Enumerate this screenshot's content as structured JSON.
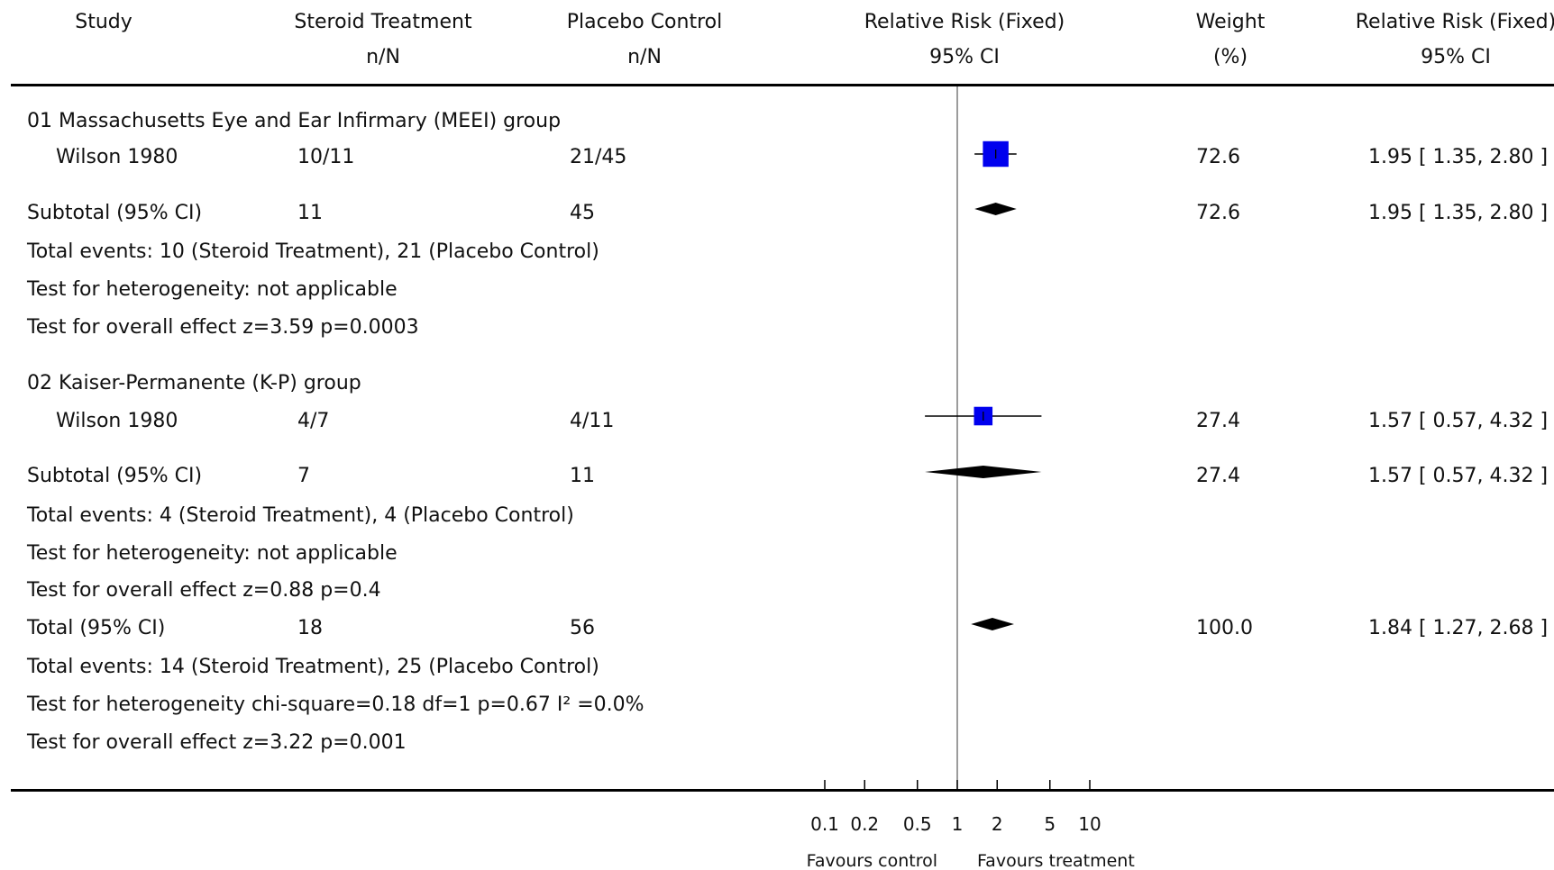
{
  "header": {
    "study": "Study",
    "treatment": "Steroid Treatment",
    "treatment_sub": "n/N",
    "control": "Placebo Control",
    "control_sub": "n/N",
    "rr": "Relative Risk (Fixed)",
    "rr_sub": "95% CI",
    "weight": "Weight",
    "weight_sub": "(%)",
    "rr2": "Relative Risk (Fixed)",
    "rr2_sub": "95% CI"
  },
  "groups": [
    {
      "title": "01 Massachusetts Eye and Ear Infirmary (MEEI) group",
      "study": {
        "name": "Wilson 1980",
        "treatment": "10/11",
        "control": "21/45",
        "weight": "72.6",
        "ci_text": "1.95 [ 1.35, 2.80 ]"
      },
      "subtotal": {
        "label": "Subtotal (95% CI)",
        "treatment": "11",
        "control": "45",
        "weight": "72.6",
        "ci_text": "1.95 [ 1.35, 2.80 ]"
      },
      "events": "Total events: 10 (Steroid Treatment), 21 (Placebo Control)",
      "heterogeneity": "Test for heterogeneity: not applicable",
      "overall": "Test for overall effect z=3.59    p=0.0003"
    },
    {
      "title": "02 Kaiser-Permanente (K-P) group",
      "study": {
        "name": "Wilson 1980",
        "treatment": "4/7",
        "control": "4/11",
        "weight": "27.4",
        "ci_text": "1.57 [ 0.57, 4.32 ]"
      },
      "subtotal": {
        "label": "Subtotal (95% CI)",
        "treatment": "7",
        "control": "11",
        "weight": "27.4",
        "ci_text": "1.57 [ 0.57, 4.32 ]"
      },
      "events": "Total events: 4 (Steroid Treatment), 4 (Placebo Control)",
      "heterogeneity": "Test for heterogeneity: not applicable",
      "overall": "Test for overall effect z=0.88    p=0.4"
    }
  ],
  "total": {
    "label": "Total (95% CI)",
    "treatment": "18",
    "control": "56",
    "weight": "100.0",
    "ci_text": "1.84 [ 1.27, 2.68 ]",
    "events": "Total events: 14 (Steroid Treatment), 25 (Placebo Control)",
    "heterogeneity": "Test for heterogeneity chi-square=0.18 df=1 p=0.67 I² =0.0%",
    "overall": "Test for overall effect z=3.22    p=0.001"
  },
  "axis": {
    "favours_left": "Favours control",
    "favours_right": "Favours treatment"
  },
  "chart_data": {
    "type": "forest",
    "scale": "log",
    "xlim": [
      0.1,
      10
    ],
    "ticks": [
      0.1,
      0.2,
      0.5,
      1,
      2,
      5,
      10
    ],
    "tick_labels": [
      "0.1",
      "0.2",
      "0.5",
      "1",
      "2",
      "5",
      "10"
    ],
    "reference_line": 1,
    "study_color": "#0000ee",
    "diamond_color": "#000000",
    "studies": [
      {
        "group": "01 Massachusetts Eye and Ear Infirmary (MEEI) group",
        "name": "Wilson 1980",
        "rr": 1.95,
        "lower": 1.35,
        "upper": 2.8,
        "weight": 72.6
      },
      {
        "group": "02 Kaiser-Permanente (K-P) group",
        "name": "Wilson 1980",
        "rr": 1.57,
        "lower": 0.57,
        "upper": 4.32,
        "weight": 27.4
      }
    ],
    "subtotals": [
      {
        "group": "01 Massachusetts Eye and Ear Infirmary (MEEI) group",
        "rr": 1.95,
        "lower": 1.35,
        "upper": 2.8
      },
      {
        "group": "02 Kaiser-Permanente (K-P) group",
        "rr": 1.57,
        "lower": 0.57,
        "upper": 4.32
      }
    ],
    "overall": {
      "rr": 1.84,
      "lower": 1.27,
      "upper": 2.68
    }
  }
}
